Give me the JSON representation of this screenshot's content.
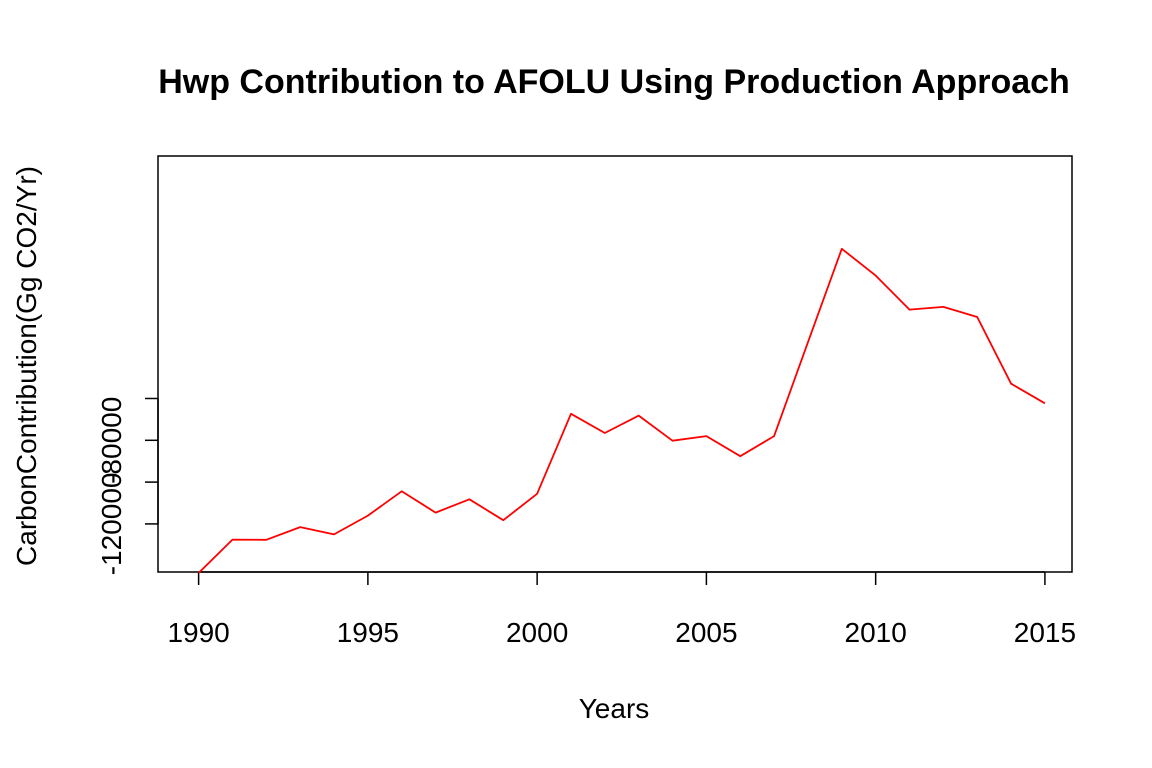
{
  "chart_data": {
    "type": "line",
    "title": "Hwp Contribution to AFOLU Using Production Approach",
    "xlabel": "Years",
    "ylabel": "CarbonContribution(Gg CO2/Yr)",
    "xlim": [
      1988.8,
      2015.8
    ],
    "ylim": [
      -143000,
      56000
    ],
    "x_ticks": [
      1990,
      1995,
      2000,
      2005,
      2010,
      2015
    ],
    "y_ticks": [
      -120000,
      -80000
    ],
    "y_tick_labels": [
      "-120000",
      "-80000"
    ],
    "y_ticks_unlabeled": [
      -100000,
      -60000
    ],
    "grid": false,
    "line_color": "#ff0000",
    "series": [
      {
        "x": [
          1990,
          1991,
          1992,
          1993,
          1994,
          1995,
          1996,
          1997,
          1998,
          1999,
          2000,
          2001,
          2002,
          2003,
          2004,
          2005,
          2006,
          2007,
          2008,
          2009,
          2010,
          2011,
          2012,
          2013,
          2014,
          2015
        ],
        "values": [
          -143500,
          -127500,
          -127600,
          -121500,
          -125000,
          -116000,
          -104400,
          -114600,
          -108200,
          -118200,
          -105600,
          -67300,
          -76500,
          -68200,
          -80200,
          -78000,
          -87600,
          -78000,
          -33000,
          11600,
          -1200,
          -17500,
          -16200,
          -21000,
          -52900,
          -62300
        ]
      }
    ]
  }
}
